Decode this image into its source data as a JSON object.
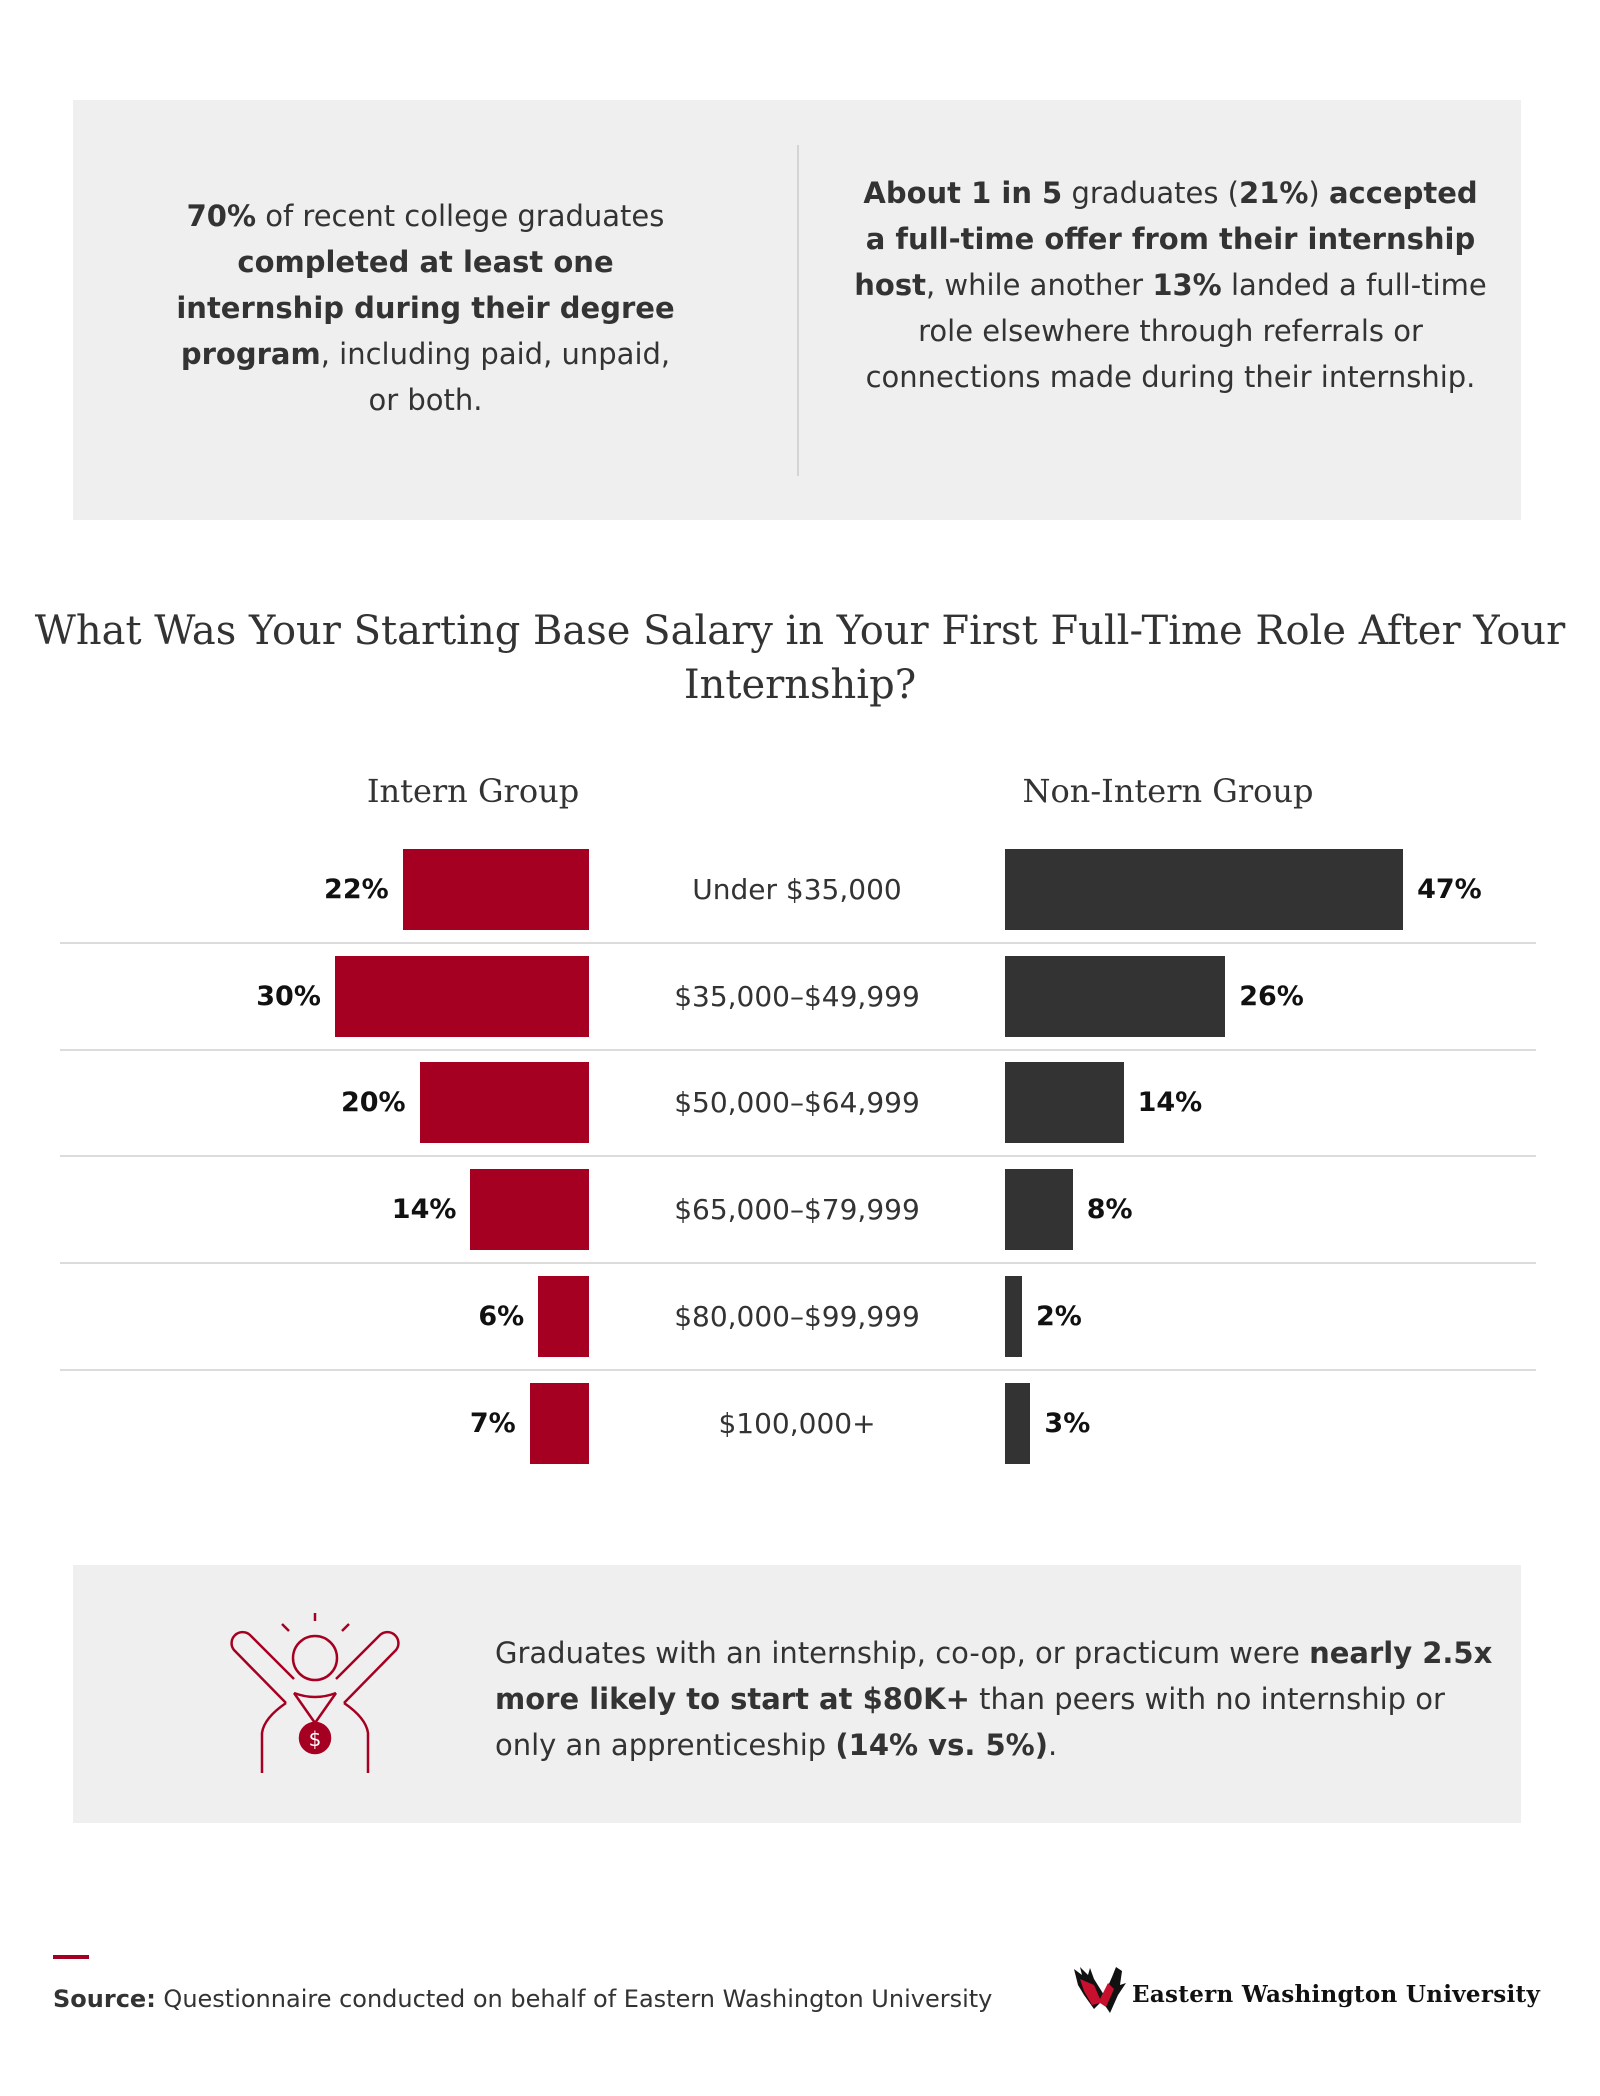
{
  "stats": {
    "left": [
      {
        "text": "70%",
        "bold": true
      },
      {
        "text": " of recent college graduates ",
        "bold": false
      },
      {
        "text": "completed at least one internship during their degree program",
        "bold": true
      },
      {
        "text": ", including paid, unpaid, or both.",
        "bold": false
      }
    ],
    "right": [
      {
        "text": "About 1 in 5",
        "bold": true
      },
      {
        "text": " graduates (",
        "bold": false
      },
      {
        "text": "21%",
        "bold": true
      },
      {
        "text": ") ",
        "bold": false
      },
      {
        "text": "accepted a full-time offer from their internship host",
        "bold": true
      },
      {
        "text": ", while another ",
        "bold": false
      },
      {
        "text": "13%",
        "bold": true
      },
      {
        "text": " landed a full-time role elsewhere through referrals or connections made during their internship.",
        "bold": false
      }
    ]
  },
  "chart_data": {
    "type": "bar",
    "orientation": "horizontal-butterfly",
    "title": "What Was Your Starting Base Salary in Your First Full-Time Role After Your Internship?",
    "categories": [
      "Under $35,000",
      "$35,000–$49,999",
      "$50,000–$64,999",
      "$65,000–$79,999",
      "$80,000–$99,999",
      "$100,000+"
    ],
    "series": [
      {
        "name": "Intern Group",
        "values": [
          22,
          30,
          20,
          14,
          6,
          7
        ],
        "color": "#a50021"
      },
      {
        "name": "Non-Intern Group",
        "values": [
          47,
          26,
          14,
          8,
          2,
          3
        ],
        "color": "#333333"
      }
    ],
    "unit": "%",
    "grid": false
  },
  "callout": [
    {
      "text": "Graduates with an internship, co-op, or practicum were ",
      "bold": false
    },
    {
      "text": "nearly 2.5x more likely to start at $80K+",
      "bold": true
    },
    {
      "text": " than peers with no internship or only an apprenticeship ",
      "bold": false
    },
    {
      "text": "(14% vs. 5%)",
      "bold": true
    },
    {
      "text": ".",
      "bold": false
    }
  ],
  "icon": "celebrating-person-with-dollar-medal-icon",
  "footer": {
    "source_label": "Source:",
    "source_text": " Questionnaire conducted on behalf of Eastern Washington University",
    "logo_text": "Eastern Washington University"
  },
  "colors": {
    "accent": "#a50021",
    "dark": "#333333",
    "panel": "#efefef"
  }
}
